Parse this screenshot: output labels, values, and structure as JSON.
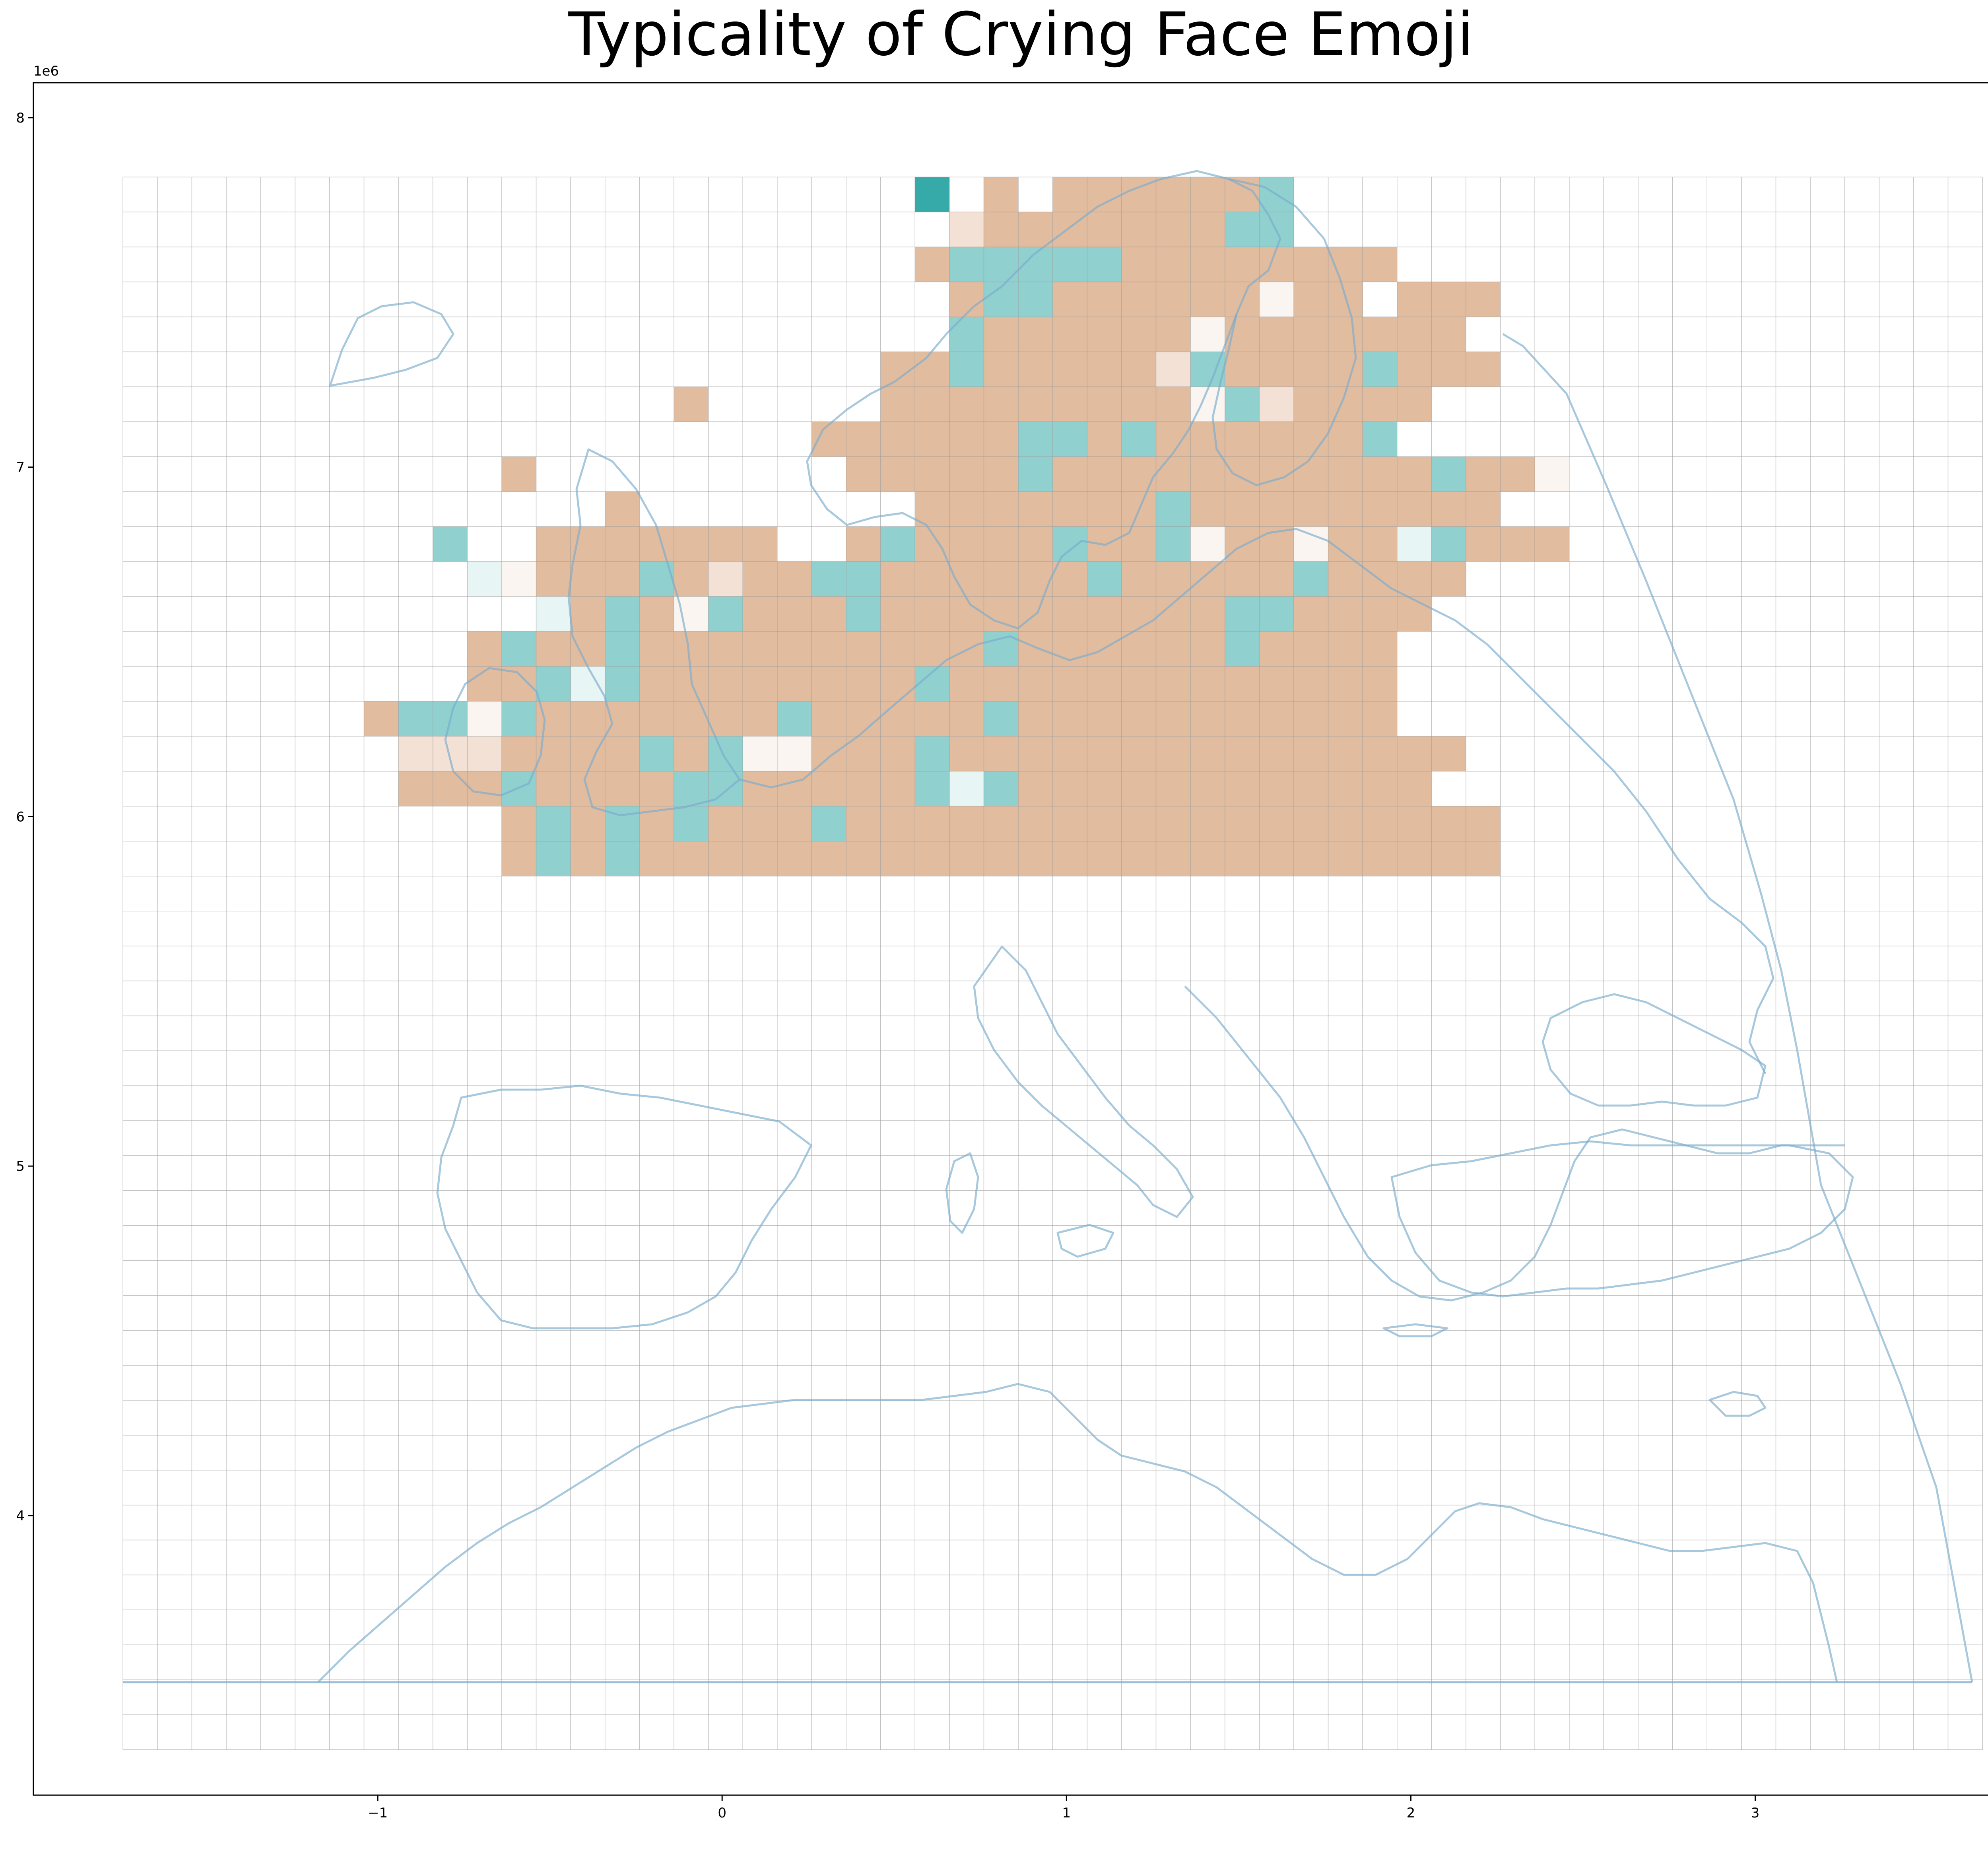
{
  "chart_data": {
    "type": "heatmap",
    "title": "Typicality of Crying Face Emoji",
    "x_offset_label": "1e6",
    "y_offset_label": "1e6",
    "xlim": [
      -2.0,
      3.9
    ],
    "ylim": [
      3.2,
      8.1
    ],
    "x_ticks": [
      {
        "value": -1,
        "label": "−1"
      },
      {
        "value": 0,
        "label": "0"
      },
      {
        "value": 1,
        "label": "1"
      },
      {
        "value": 2,
        "label": "2"
      },
      {
        "value": 3,
        "label": "3"
      }
    ],
    "y_ticks": [
      {
        "value": 4,
        "label": "4"
      },
      {
        "value": 5,
        "label": "5"
      },
      {
        "value": 6,
        "label": "6"
      },
      {
        "value": 7,
        "label": "7"
      },
      {
        "value": 8,
        "label": "8"
      }
    ],
    "grid": {
      "x_start": -1.74,
      "cell_width": 0.1,
      "columns": 54,
      "y_start": 3.33,
      "cell_height": 0.1,
      "rows": 45
    },
    "colors": {
      "high": "#35aaa8",
      "mid": "#ffffff",
      "low": "#e1bc9f",
      "grid_line": "#9a9a9a",
      "coastline": "#7aaacd"
    },
    "value_scale": "-3 = strong teal (typical) ... 0 = white ... 3 = tan (atypical)",
    "value_rows": [
      ".......................C.3.333333-.....................",
      "........................23333333--.....................",
      ".......................3-----33333333..................",
      "........................3--333333133.333...............",
      "........................-33333313333333................",
      "......................33-333332-3333-333...............",
      "................3.....3333333331-23333.................",
      "....................333333--3-333333-........................",
      "...........3.........33333-33333333333-331.............",
      "..............3........3333333-333333333..................",
      ".........-..3333333..3-3333-33-1331330-333..................",
      "..........01333-3233--333333-33333-3333....................",
      "............03-31-333-3333333333--3333.....................",
      "..........3-33-3333333333-333333-3333.......................",
      "..........33-0-33333333-3333333333333......................",
      ".......3--1-3333333-33333-33333333333.....................",
      "........2223333-3-11333-333333333333333....................",
      "........333-3333--33333-0-333333333333......................",
      "...........3-3-3-333-3333333333333333333.....................",
      "...........3-3-3333333333333333333333333......................",
      "............................................",
      "..........................................",
      "..................................................",
      "..................................................",
      ".................................................",
      "...........................................",
      ".............................................",
      "...........................................",
      "...........................................",
      "..........................................",
      ".........................................",
      "..........................................",
      "..........................................",
      "...........................................",
      "...........................................",
      ".........................................",
      ".........................................",
      "...........................................",
      "...........................................",
      "...........................................",
      "...........................................",
      "...........................................",
      "...........................................",
      "...........................................",
      "..........................................."
    ]
  }
}
